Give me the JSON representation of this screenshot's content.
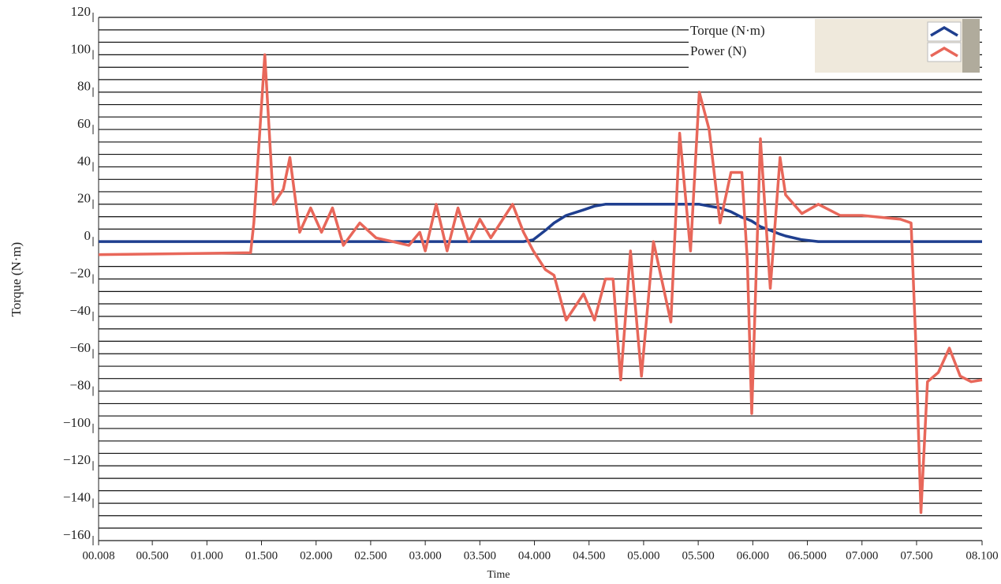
{
  "chart_data": {
    "type": "line",
    "xlabel": "Time",
    "ylabel": "Torque (N·m)",
    "x": [
      0.008,
      1.4,
      1.43,
      1.53,
      1.61,
      1.7,
      1.76,
      1.85,
      1.95,
      2.05,
      2.15,
      2.25,
      2.4,
      2.55,
      2.7,
      2.85,
      2.95,
      3.0,
      3.1,
      3.2,
      3.3,
      3.4,
      3.5,
      3.6,
      3.8,
      3.9,
      3.99,
      4.1,
      4.18,
      4.29,
      4.45,
      4.55,
      4.65,
      4.72,
      4.79,
      4.88,
      4.98,
      5.09,
      5.25,
      5.33,
      5.43,
      5.51,
      5.6,
      5.7,
      5.8,
      5.9,
      5.95,
      5.99,
      6.07,
      6.16,
      6.25,
      6.3,
      6.45,
      6.6,
      6.8,
      7.0,
      7.35,
      7.45,
      7.49,
      7.54,
      7.6,
      7.7,
      7.8,
      7.9,
      8.0,
      8.1
    ],
    "series": [
      {
        "name": "Torque (N·m)",
        "color": "#1f3f8f",
        "values": [
          0,
          0,
          0,
          0,
          0,
          0,
          0,
          0,
          0,
          0,
          0,
          0,
          0,
          0,
          0,
          0,
          0,
          0,
          0,
          0,
          0,
          0,
          0,
          0,
          0,
          0,
          1,
          6,
          10,
          14,
          17,
          19,
          20,
          20,
          20,
          20,
          20,
          20,
          20,
          20,
          20,
          20,
          19,
          18,
          16,
          13,
          12,
          11,
          8,
          6,
          4,
          3,
          1,
          0,
          0,
          0,
          0,
          0,
          0,
          0,
          0,
          0,
          0,
          0,
          0,
          0
        ]
      },
      {
        "name": "Power (N)",
        "color": "#e8675a",
        "values": [
          -7,
          -6,
          10,
          100,
          20,
          28,
          45,
          5,
          18,
          5,
          18,
          -2,
          10,
          2,
          0,
          -2,
          5,
          -5,
          20,
          -5,
          18,
          0,
          12,
          2,
          20,
          5,
          -5,
          -15,
          -18,
          -42,
          -28,
          -42,
          -20,
          -20,
          -74,
          -5,
          -72,
          0,
          -43,
          58,
          -5,
          80,
          60,
          10,
          37,
          37,
          -10,
          -92,
          55,
          -25,
          45,
          25,
          15,
          20,
          14,
          14,
          12,
          10,
          -50,
          -145,
          -75,
          -70,
          -57,
          -72,
          -75,
          -74
        ]
      }
    ],
    "xlim": [
      0.008,
      8.1
    ],
    "xticks": [
      {
        "value": 0.008,
        "label": "00.008"
      },
      {
        "value": 0.5,
        "label": "00.500"
      },
      {
        "value": 1.0,
        "label": "01.000"
      },
      {
        "value": 1.5,
        "label": "01.500"
      },
      {
        "value": 2.0,
        "label": "02.000"
      },
      {
        "value": 2.5,
        "label": "02.500"
      },
      {
        "value": 3.0,
        "label": "03.000"
      },
      {
        "value": 3.5,
        "label": "03.500"
      },
      {
        "value": 4.0,
        "label": "04.000"
      },
      {
        "value": 4.5,
        "label": "04.500"
      },
      {
        "value": 5.0,
        "label": "05.000"
      },
      {
        "value": 5.5,
        "label": "05.500"
      },
      {
        "value": 6.0,
        "label": "06.000"
      },
      {
        "value": 6.5,
        "label": "06.5000"
      },
      {
        "value": 7.0,
        "label": "07.000"
      },
      {
        "value": 7.5,
        "label": "07.500"
      },
      {
        "value": 8.1,
        "label": "08.100"
      }
    ],
    "ylim": [
      -160,
      120
    ],
    "yticks": [
      120,
      100,
      80,
      60,
      40,
      20,
      0,
      {
        "value": -20,
        "label": "−20"
      },
      {
        "value": -40,
        "label": "−40"
      },
      {
        "value": -60,
        "label": "−60"
      },
      {
        "value": -80,
        "label": "−80"
      },
      {
        "value": -100,
        "label": "−100"
      },
      {
        "value": -120,
        "label": "−120"
      },
      {
        "value": -140,
        "label": "−140"
      },
      {
        "value": -160,
        "label": "−160"
      }
    ],
    "yminorticks": [
      -153.3,
      -146.7,
      -133.3,
      -126.7,
      -113.3,
      -106.7,
      -93.3,
      -86.7,
      -73.3,
      -66.7,
      -53.3,
      -46.7,
      -33.3,
      -26.7,
      -13.3,
      -6.7,
      6.7,
      13.3,
      26.7,
      33.3,
      46.7,
      53.3,
      66.7,
      73.3,
      86.7,
      93.3,
      106.7,
      113.3
    ],
    "grid": true,
    "legend": "upper right"
  }
}
